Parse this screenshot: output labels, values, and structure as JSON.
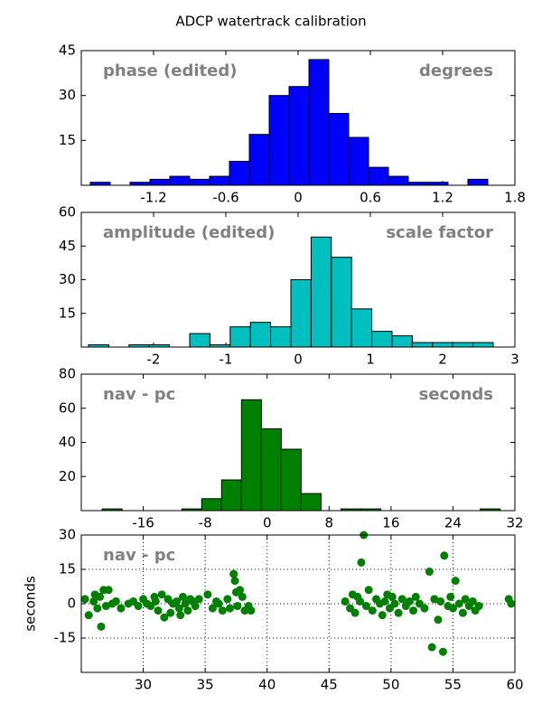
{
  "title": "ADCP watertrack calibration",
  "chart_data": [
    {
      "type": "histogram",
      "color": "#0000ff",
      "annotations": [
        {
          "text": "phase (edited)",
          "loc": "upper left"
        },
        {
          "text": "degrees",
          "loc": "upper right"
        }
      ],
      "bins": [
        -1.725,
        -1.56,
        -1.395,
        -1.23,
        -1.065,
        -0.9,
        -0.735,
        -0.57,
        -0.405,
        -0.24,
        -0.075,
        0.09,
        0.255,
        0.42,
        0.585,
        0.75,
        0.915,
        1.08,
        1.245,
        1.41,
        1.575
      ],
      "counts": [
        1,
        0,
        1,
        2,
        3,
        2,
        3,
        8,
        17,
        30,
        33,
        42,
        24,
        16,
        6,
        3,
        1,
        1,
        0,
        2
      ],
      "xlim": [
        -1.8,
        1.8
      ],
      "xticks": [
        -1.2,
        -0.6,
        0.0,
        0.6,
        1.2,
        1.8
      ],
      "ylim": [
        0,
        45
      ],
      "yticks": [
        15,
        30,
        45
      ],
      "grid": false
    },
    {
      "type": "histogram",
      "color": "#00bfbf",
      "annotations": [
        {
          "text": "amplitude (edited)",
          "loc": "upper left"
        },
        {
          "text": "scale factor",
          "loc": "upper right"
        }
      ],
      "bins": [
        -2.9,
        -2.62,
        -2.34,
        -2.06,
        -1.78,
        -1.5,
        -1.22,
        -0.94,
        -0.66,
        -0.38,
        -0.1,
        0.18,
        0.46,
        0.74,
        1.02,
        1.3,
        1.58,
        1.86,
        2.14,
        2.42,
        2.7
      ],
      "counts": [
        1,
        0,
        1,
        1,
        0,
        6,
        1,
        9,
        11,
        9,
        30,
        49,
        40,
        17,
        7,
        5,
        2,
        2,
        2,
        2
      ],
      "xlim": [
        -3,
        3
      ],
      "xticks": [
        -2,
        -1,
        0,
        1,
        2,
        3
      ],
      "ylim": [
        0,
        60
      ],
      "yticks": [
        15,
        30,
        45,
        60
      ],
      "grid": false
    },
    {
      "type": "histogram",
      "color": "#008000",
      "annotations": [
        {
          "text": "nav - pc",
          "loc": "upper left"
        },
        {
          "text": "seconds",
          "loc": "upper right"
        }
      ],
      "bins": [
        -21.3,
        -18.73,
        -16.16,
        -13.59,
        -11.02,
        -8.45,
        -5.88,
        -3.31,
        -0.74,
        1.83,
        4.4,
        6.97,
        9.54,
        12.11,
        14.68,
        17.25,
        19.82,
        22.39,
        24.96,
        27.53,
        30.1
      ],
      "counts": [
        1,
        0,
        0,
        0,
        1,
        7,
        18,
        65,
        48,
        36,
        10,
        0,
        1,
        1,
        0,
        0,
        0,
        0,
        0,
        1
      ],
      "xlim": [
        -24,
        32
      ],
      "xticks": [
        -16,
        -8,
        0,
        8,
        16,
        24,
        32
      ],
      "ylim": [
        0,
        80
      ],
      "yticks": [
        20,
        40,
        60,
        80
      ],
      "grid": false
    },
    {
      "type": "scatter",
      "color": "#008000",
      "ylabel": "seconds",
      "annotations": [
        {
          "text": "nav - pc",
          "loc": "upper left"
        }
      ],
      "x": [
        25.3,
        25.6,
        26.0,
        26.1,
        26.3,
        26.5,
        26.6,
        26.8,
        27.0,
        27.2,
        27.5,
        27.8,
        28.2,
        28.8,
        29.2,
        29.6,
        30.0,
        30.3,
        30.6,
        30.9,
        31.0,
        31.2,
        31.5,
        31.7,
        32.0,
        32.2,
        32.4,
        32.7,
        32.9,
        33.0,
        33.2,
        33.4,
        33.6,
        33.8,
        34.0,
        34.2,
        34.5,
        35.2,
        35.6,
        35.9,
        36.1,
        36.4,
        36.8,
        37.0,
        37.3,
        37.4,
        37.5,
        37.6,
        37.8,
        38.0,
        38.2,
        38.5,
        38.7,
        46.3,
        46.7,
        46.9,
        47.1,
        47.3,
        47.5,
        47.6,
        47.8,
        48.0,
        48.2,
        48.5,
        48.8,
        49.1,
        49.3,
        49.5,
        49.7,
        49.9,
        50.1,
        50.3,
        50.6,
        50.9,
        51.2,
        51.5,
        51.8,
        52.0,
        52.3,
        52.7,
        53.1,
        53.3,
        53.5,
        53.8,
        54.0,
        54.2,
        54.3,
        54.6,
        54.8,
        55.0,
        55.2,
        55.5,
        55.8,
        56.0,
        56.3,
        56.6,
        56.8,
        57.1,
        59.5,
        59.7
      ],
      "y": [
        2,
        -5,
        1,
        4,
        -2,
        3,
        -10,
        6,
        -1,
        6,
        0,
        1,
        -2,
        0,
        1,
        -1,
        2,
        0,
        -1,
        3,
        1,
        -3,
        4,
        -6,
        2,
        -4,
        0,
        1,
        -2,
        -5,
        3,
        0,
        -3,
        2,
        1,
        -1,
        2,
        4,
        -2,
        1,
        0,
        -3,
        2,
        -2,
        13,
        10,
        5,
        -1,
        6,
        3,
        -3,
        -1,
        -3,
        1,
        -2,
        4,
        -4,
        3,
        1,
        18,
        30,
        -1,
        6,
        -3,
        2,
        0,
        -5,
        1,
        4,
        -2,
        3,
        0,
        -4,
        2,
        -1,
        1,
        -3,
        3,
        0,
        -2,
        14,
        -19,
        2,
        -7,
        1,
        -21,
        21,
        -1,
        3,
        -2,
        10,
        0,
        -4,
        2,
        -1,
        1,
        -3,
        -1,
        2,
        0
      ],
      "xlim": [
        25,
        60
      ],
      "xticks": [
        30,
        35,
        40,
        45,
        50,
        55,
        60
      ],
      "ylim": [
        -30,
        30
      ],
      "yticks": [
        -15,
        0,
        15,
        30
      ],
      "grid": true
    }
  ]
}
